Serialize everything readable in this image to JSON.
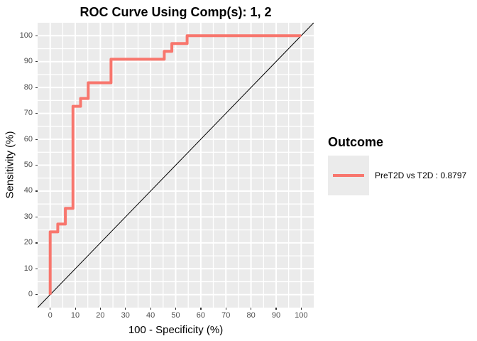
{
  "title": "ROC Curve Using Comp(s): 1, 2",
  "legend": {
    "title": "Outcome",
    "entries": [
      {
        "label": "PreT2D vs T2D : 0.8797",
        "color": "#F8766D"
      }
    ]
  },
  "colors": {
    "panel_background": "#EBEBEB",
    "grid": "#FFFFFF",
    "curve": "#F8766D",
    "diagonal": "#000000",
    "tick_text": "#4D4D4D",
    "tick_mark": "#333333"
  },
  "chart_data": {
    "type": "line",
    "subtype": "roc-step-curve",
    "title": "ROC Curve Using Comp(s): 1, 2",
    "xlabel": "100 - Specificity (%)",
    "ylabel": "Sensitivity (%)",
    "xlim": [
      -5,
      105
    ],
    "ylim": [
      -5,
      105
    ],
    "x_ticks": [
      0,
      10,
      20,
      30,
      40,
      50,
      60,
      70,
      80,
      90,
      100
    ],
    "y_ticks": [
      0,
      10,
      20,
      30,
      40,
      50,
      60,
      70,
      80,
      90,
      100
    ],
    "minor_ticks": [
      5,
      15,
      25,
      35,
      45,
      55,
      65,
      75,
      85,
      95
    ],
    "grid": "major and minor white gridlines on gray panel",
    "legend_position": "right",
    "legend_title": "Outcome",
    "series": [
      {
        "name": "PreT2D vs T2D : 0.8797",
        "color": "#F8766D",
        "auc": 0.8797,
        "points": [
          [
            0,
            0
          ],
          [
            0,
            24.24
          ],
          [
            3.03,
            24.24
          ],
          [
            3.03,
            27.27
          ],
          [
            6.06,
            27.27
          ],
          [
            6.06,
            33.33
          ],
          [
            9.09,
            33.33
          ],
          [
            9.09,
            72.73
          ],
          [
            12.12,
            72.73
          ],
          [
            12.12,
            75.76
          ],
          [
            15.15,
            75.76
          ],
          [
            15.15,
            81.82
          ],
          [
            24.24,
            81.82
          ],
          [
            24.24,
            90.91
          ],
          [
            45.45,
            90.91
          ],
          [
            45.45,
            93.94
          ],
          [
            48.48,
            93.94
          ],
          [
            48.48,
            96.97
          ],
          [
            54.55,
            96.97
          ],
          [
            54.55,
            100
          ],
          [
            100,
            100
          ]
        ]
      }
    ],
    "reference_line": {
      "type": "diagonal",
      "from": [
        0,
        0
      ],
      "to": [
        100,
        100
      ],
      "color": "#000000"
    }
  }
}
